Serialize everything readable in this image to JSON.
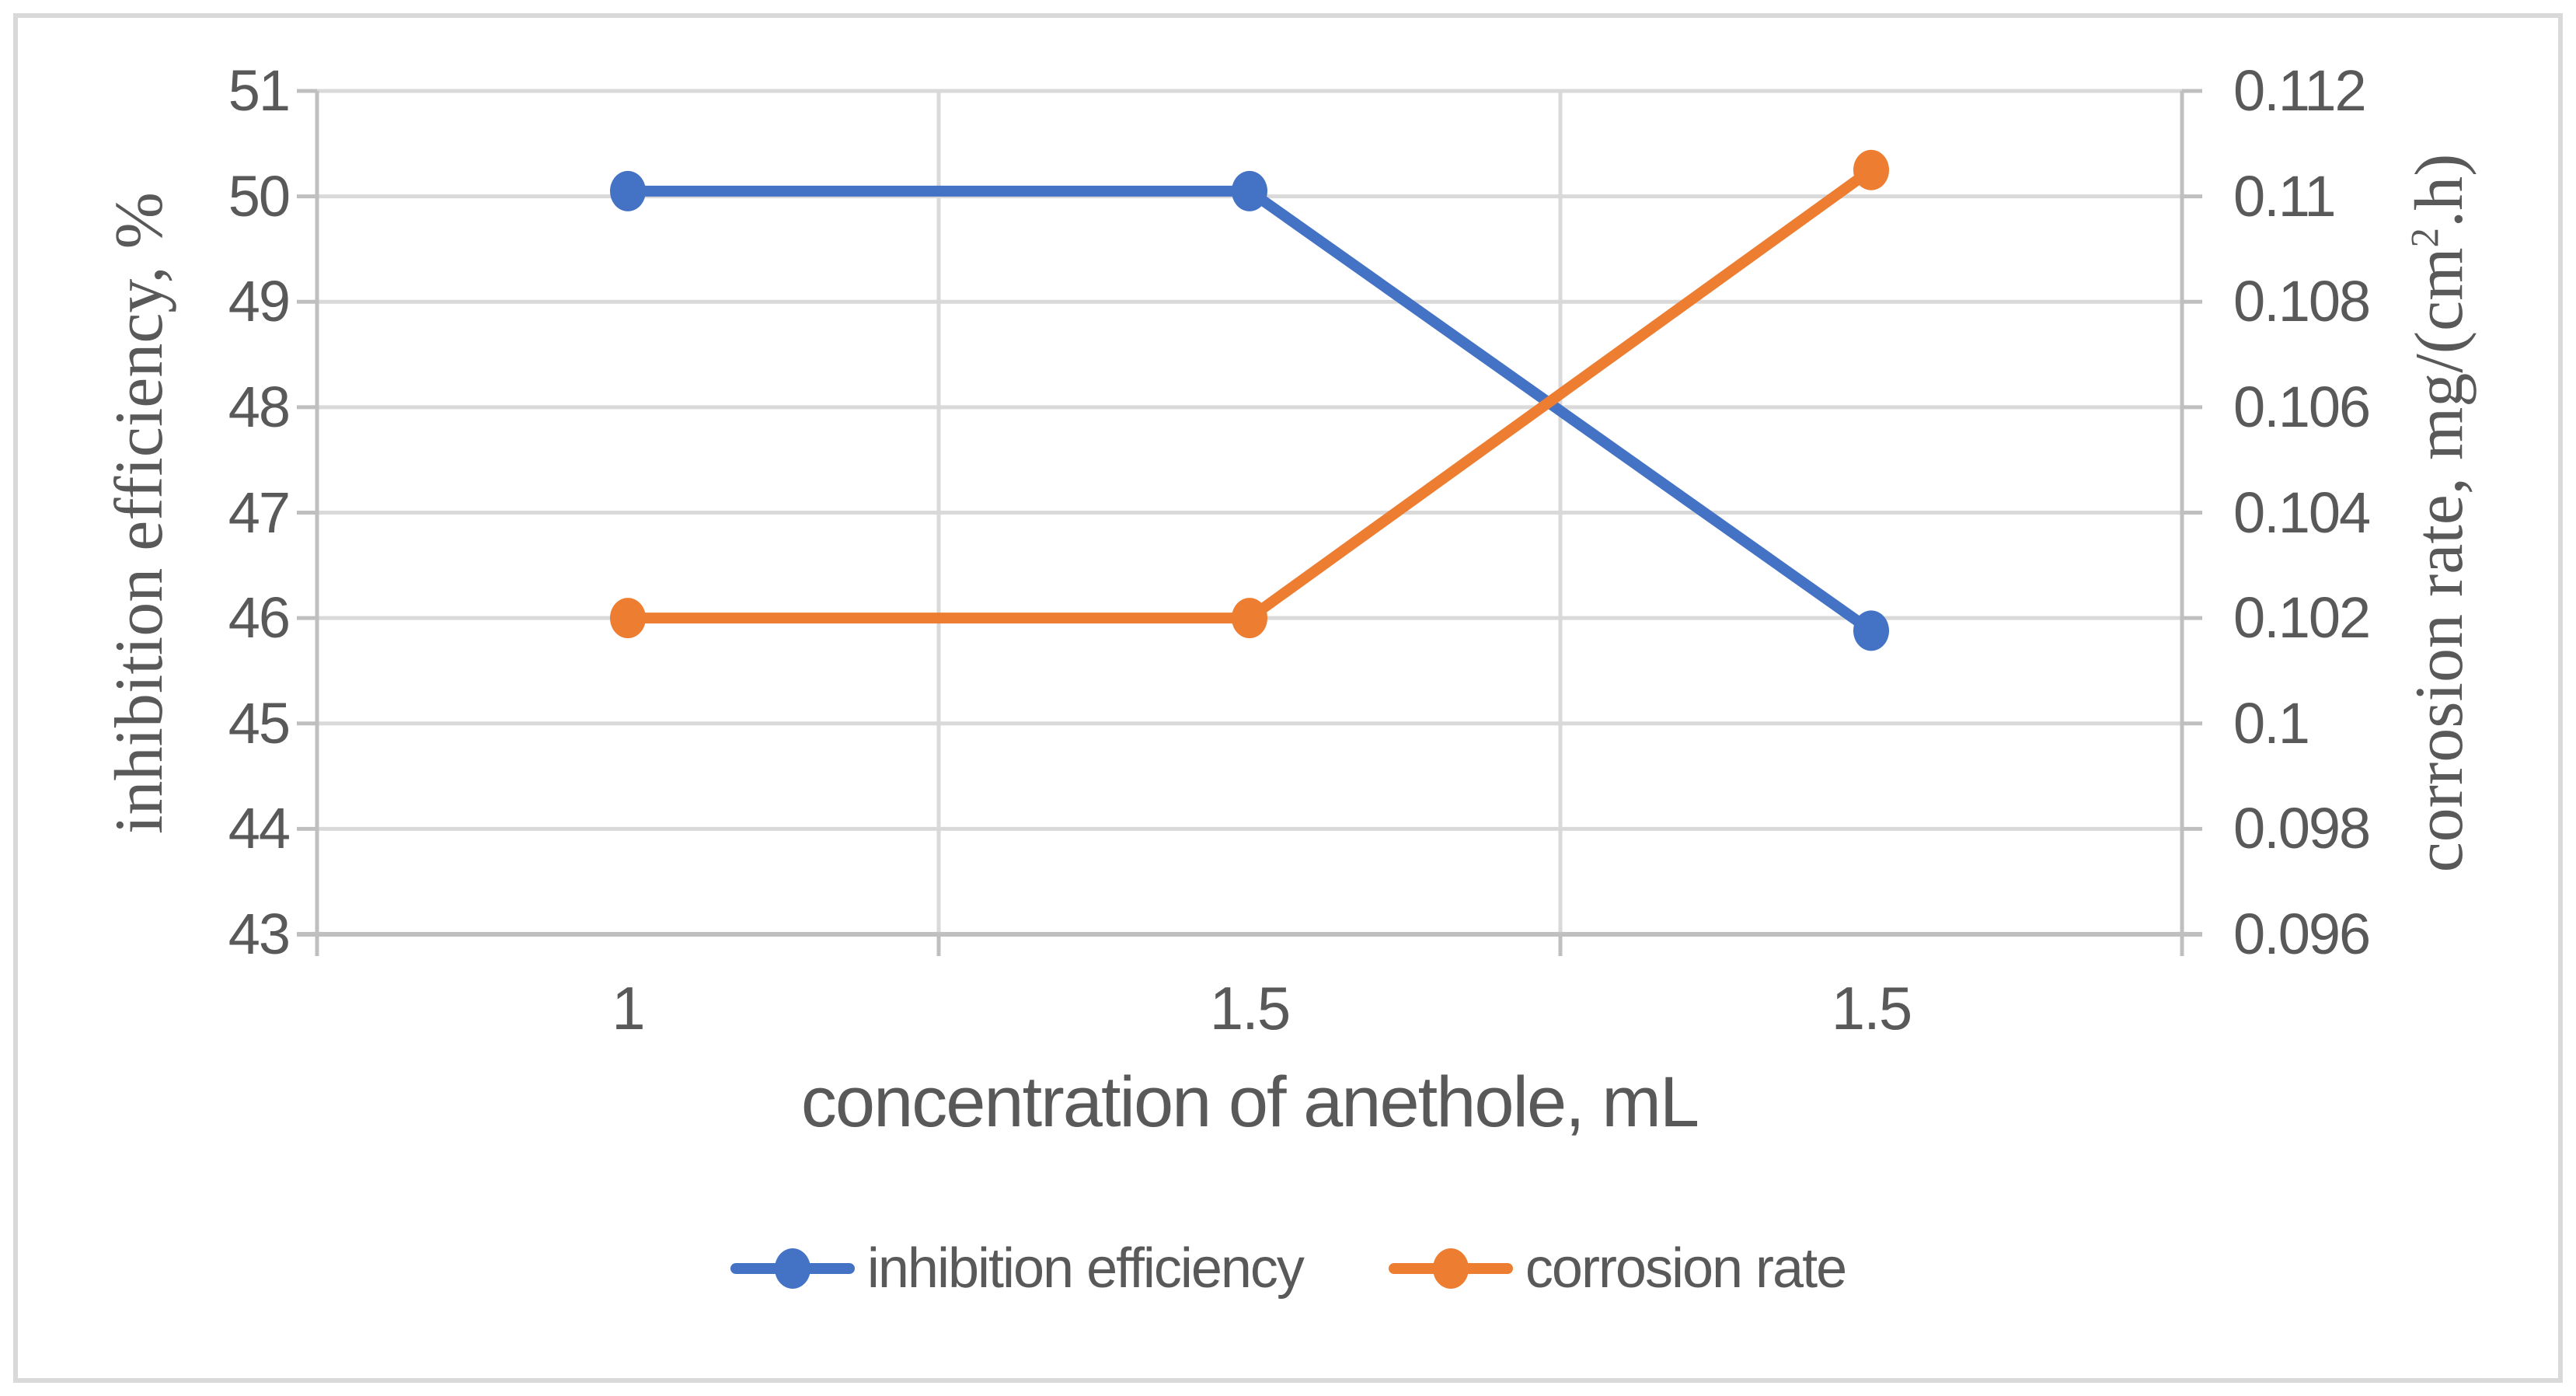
{
  "chart_data": {
    "type": "line",
    "title": "",
    "x_categories": [
      "1",
      "1.5",
      "1.5"
    ],
    "series": [
      {
        "name": "inhibition efficiency",
        "axis": "left",
        "color": "#4472C4",
        "values": [
          50.05,
          50.05,
          45.88
        ]
      },
      {
        "name": "corrosion rate",
        "axis": "right",
        "color": "#ED7D31",
        "values": [
          0.102,
          0.102,
          0.1105
        ]
      }
    ],
    "left_axis": {
      "title": "inhibition efficiency, %",
      "min": 43,
      "max": 51,
      "tick_step": 1,
      "tick_labels": [
        "51",
        "50",
        "49",
        "48",
        "47",
        "46",
        "45",
        "44",
        "43"
      ]
    },
    "right_axis": {
      "title_prefix": "corrosion rate, mg/(cm",
      "title_sup": "2",
      "title_suffix": ".h)",
      "min": 0.096,
      "max": 0.112,
      "tick_step": 0.002,
      "tick_labels": [
        "0.112",
        "0.11",
        "0.108",
        "0.106",
        "0.104",
        "0.102",
        "0.1",
        "0.098",
        "0.096"
      ]
    },
    "x_axis": {
      "title": "concentration of anethole, mL"
    },
    "legend": {
      "position": "bottom",
      "entries": [
        "inhibition efficiency",
        "corrosion rate"
      ]
    },
    "grid": "on",
    "colors": {
      "gridline": "#D9D9D9",
      "axis_line": "#BFBFBF",
      "text": "#595959",
      "frame_border": "#D9D9D9",
      "background": "#FFFFFF"
    }
  }
}
